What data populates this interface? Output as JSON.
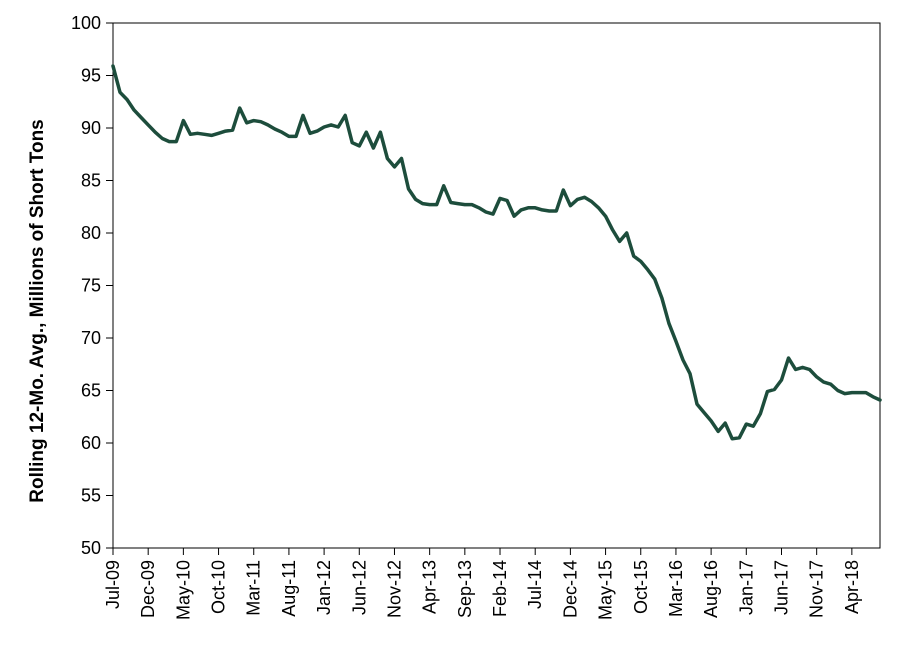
{
  "chart_data": {
    "type": "line",
    "ylabel": "Rolling 12-Mo. Avg., Millions of Short Tons",
    "xlabel": "",
    "ylim": [
      50,
      100
    ],
    "yticks": [
      50,
      55,
      60,
      65,
      70,
      75,
      80,
      85,
      90,
      95,
      100
    ],
    "xtick_labels": [
      "Jul-09",
      "Dec-09",
      "May-10",
      "Oct-10",
      "Mar-11",
      "Aug-11",
      "Jan-12",
      "Jun-12",
      "Nov-12",
      "Apr-13",
      "Sep-13",
      "Feb-14",
      "Jul-14",
      "Dec-14",
      "May-15",
      "Oct-15",
      "Mar-16",
      "Aug-16",
      "Jan-17",
      "Jun-17",
      "Nov-17",
      "Apr-18"
    ],
    "x_start": "Jul-09",
    "x_end": "Sep-18",
    "series": [
      {
        "color": "#1d4d3c",
        "values": [
          95.9,
          93.4,
          92.7,
          91.7,
          91.0,
          90.3,
          89.6,
          89.0,
          88.7,
          88.7,
          90.7,
          89.4,
          89.5,
          89.4,
          89.3,
          89.5,
          89.7,
          89.8,
          91.9,
          90.5,
          90.7,
          90.6,
          90.3,
          89.9,
          89.6,
          89.2,
          89.2,
          91.2,
          89.5,
          89.7,
          90.1,
          90.3,
          90.1,
          91.2,
          88.6,
          88.3,
          89.6,
          88.1,
          89.6,
          87.1,
          86.3,
          87.1,
          84.2,
          83.2,
          82.8,
          82.7,
          82.7,
          84.5,
          82.9,
          82.8,
          82.7,
          82.7,
          82.4,
          82.0,
          81.8,
          83.3,
          83.1,
          81.6,
          82.2,
          82.4,
          82.4,
          82.2,
          82.1,
          82.1,
          84.1,
          82.6,
          83.2,
          83.4,
          83.0,
          82.4,
          81.6,
          80.3,
          79.2,
          80.0,
          77.8,
          77.3,
          76.5,
          75.6,
          73.8,
          71.4,
          69.7,
          67.9,
          66.6,
          63.7,
          62.9,
          62.1,
          61.1,
          61.9,
          60.4,
          60.5,
          61.8,
          61.6,
          62.8,
          64.9,
          65.1,
          66.0,
          68.1,
          67.0,
          67.2,
          67.0,
          66.3,
          65.8,
          65.6,
          65.0,
          64.7,
          64.8,
          64.8,
          64.8,
          64.4,
          64.1
        ]
      }
    ]
  }
}
